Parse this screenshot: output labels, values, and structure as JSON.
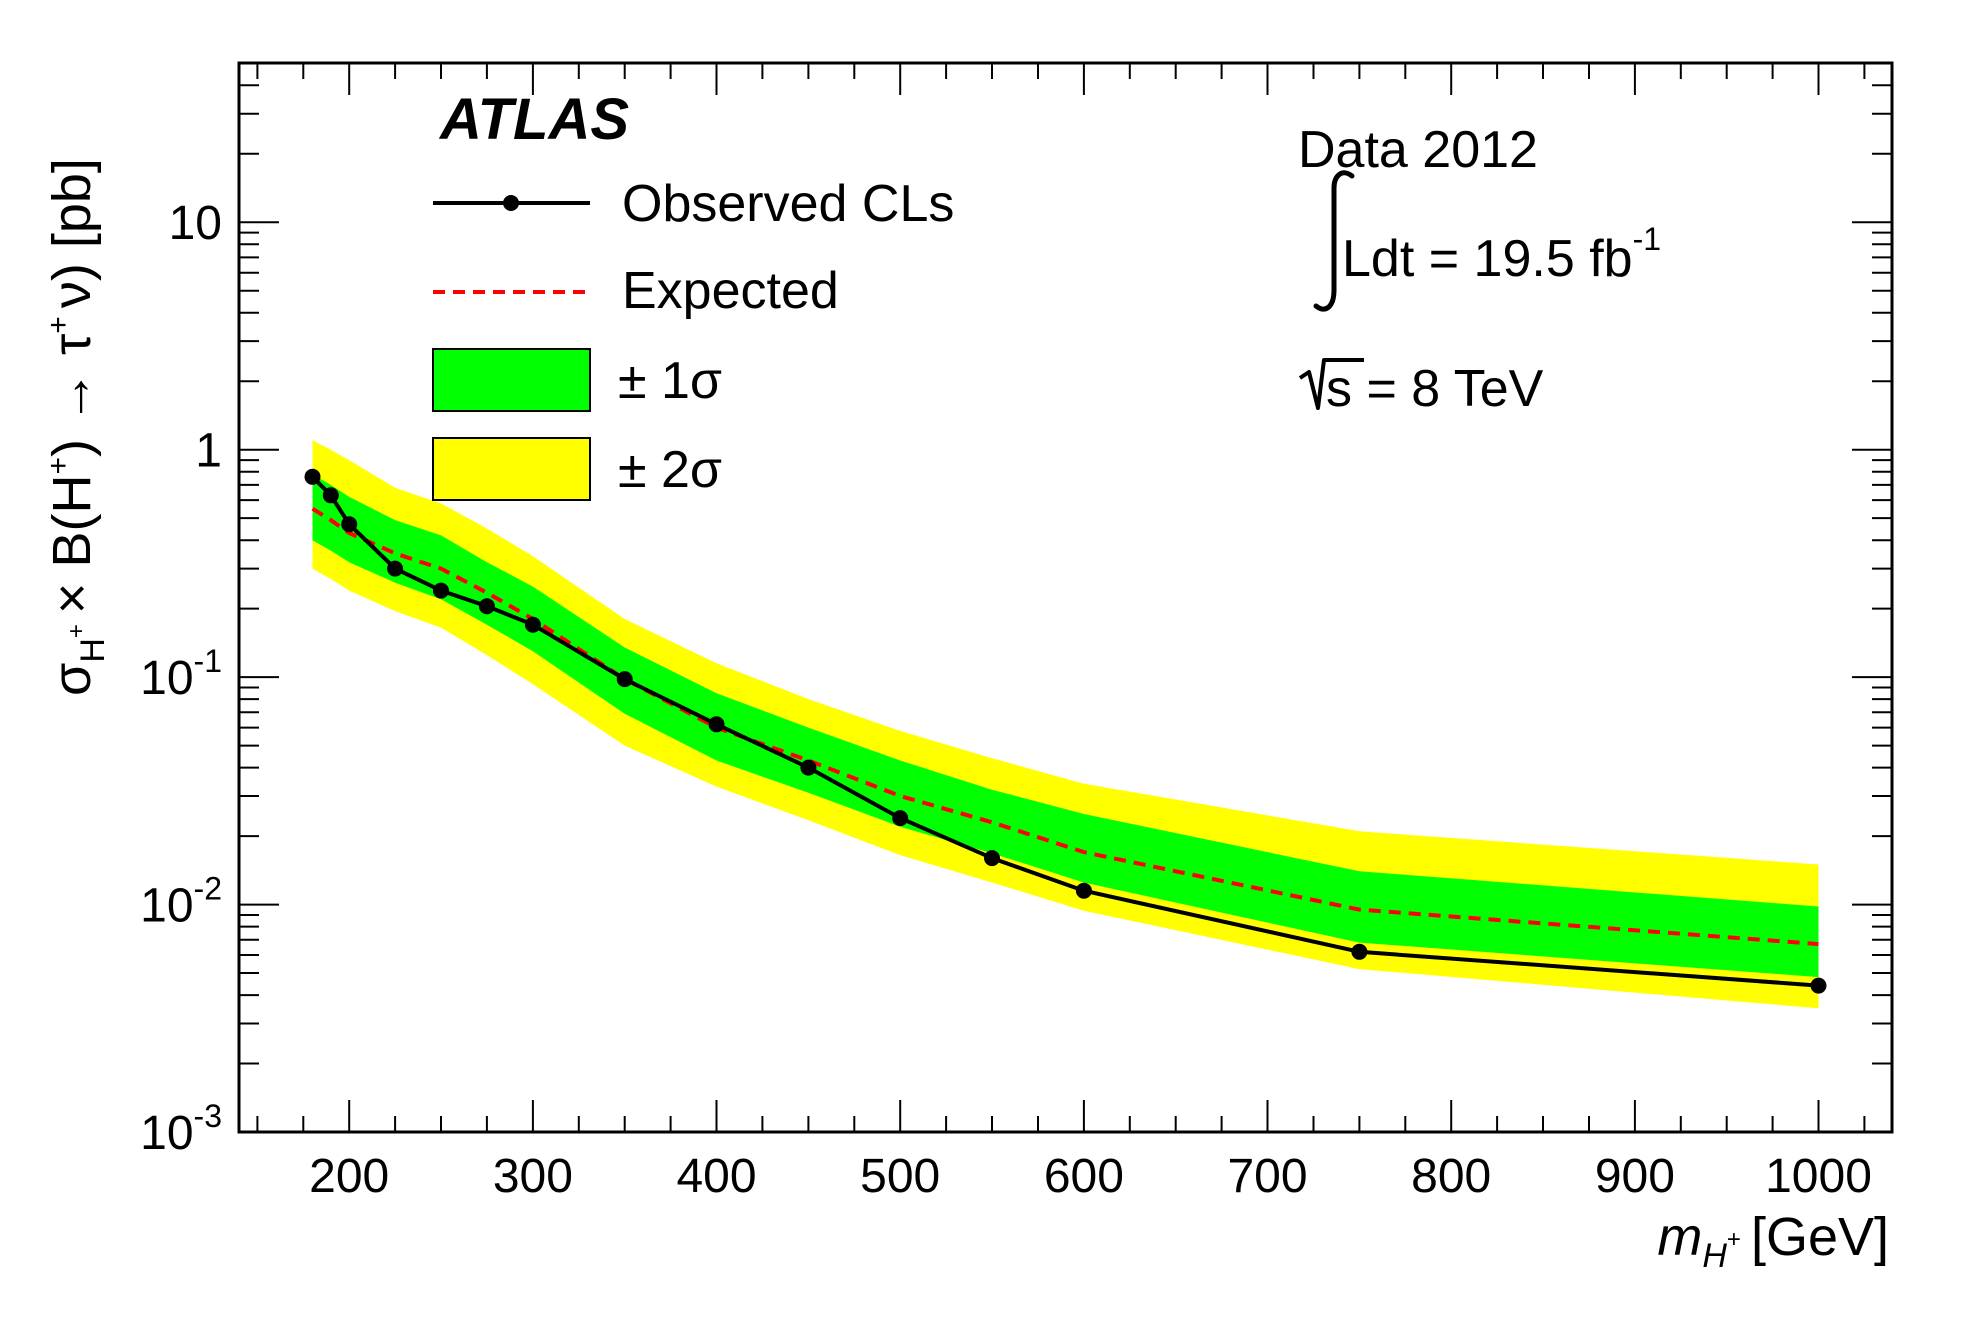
{
  "chart_data": {
    "type": "line",
    "title": "",
    "xlabel_main": "m",
    "xlabel_sub": "H",
    "xlabel_sup": "+",
    "xlabel_unit": "[GeV]",
    "ylabel": "σH+ × B(H+ → τ+ ν) [pb]",
    "ylabel_parts": {
      "sigma": "σ",
      "sigma_sub": "H",
      "sigma_sub_sup": "+",
      "times_b": "× B(H",
      "h_sup": "+",
      "arrow_tau": ") → τ",
      "tau_sup": "+",
      "nu_unit": "ν) [pb]"
    },
    "xlim": [
      140,
      1040
    ],
    "ylim_log10": [
      -3,
      1.7
    ],
    "yscale": "log",
    "x_ticks": [
      200,
      300,
      400,
      500,
      600,
      700,
      800,
      900,
      1000
    ],
    "x_tick_labels": [
      "200",
      "300",
      "400",
      "500",
      "600",
      "700",
      "800",
      "900",
      "1000"
    ],
    "y_ticks": [
      {
        "base": "10",
        "exp": "-3",
        "value": 0.001
      },
      {
        "base": "10",
        "exp": "-2",
        "value": 0.01
      },
      {
        "base": "10",
        "exp": "-1",
        "value": 0.1
      },
      {
        "base": "1",
        "exp": "",
        "value": 1
      },
      {
        "base": "10",
        "exp": "",
        "value": 10
      }
    ],
    "masses": [
      180,
      190,
      200,
      225,
      250,
      275,
      300,
      350,
      400,
      450,
      500,
      550,
      600,
      750,
      1000
    ],
    "series": [
      {
        "name": "Observed CLs",
        "color": "#000000",
        "style": "solid-with-markers",
        "x": [
          180,
          190,
          200,
          225,
          250,
          275,
          300,
          350,
          400,
          450,
          500,
          550,
          600,
          750,
          1000
        ],
        "values": [
          0.76,
          0.63,
          0.47,
          0.3,
          0.24,
          0.205,
          0.17,
          0.098,
          0.062,
          0.04,
          0.024,
          0.016,
          0.0115,
          0.0062,
          0.0044
        ]
      },
      {
        "name": "Expected",
        "color": "#ff0000",
        "style": "dashed",
        "x": [
          180,
          190,
          200,
          225,
          250,
          275,
          300,
          350,
          400,
          450,
          500,
          550,
          600,
          750,
          1000
        ],
        "values": [
          0.55,
          0.49,
          0.43,
          0.35,
          0.3,
          0.235,
          0.18,
          0.098,
          0.06,
          0.043,
          0.03,
          0.023,
          0.017,
          0.0095,
          0.0067
        ]
      }
    ],
    "bands": [
      {
        "name": "± 2σ",
        "color": "#ffff00",
        "x": [
          180,
          190,
          200,
          225,
          250,
          275,
          300,
          350,
          400,
          450,
          500,
          550,
          600,
          750,
          1000
        ],
        "lower": [
          0.3,
          0.27,
          0.24,
          0.195,
          0.165,
          0.125,
          0.093,
          0.05,
          0.033,
          0.0235,
          0.0165,
          0.0125,
          0.0094,
          0.0052,
          0.0035
        ],
        "upper": [
          1.1,
          1.0,
          0.9,
          0.68,
          0.58,
          0.45,
          0.34,
          0.18,
          0.115,
          0.08,
          0.058,
          0.044,
          0.034,
          0.021,
          0.015
        ]
      },
      {
        "name": "± 1σ",
        "color": "#00ff00",
        "x": [
          180,
          190,
          200,
          225,
          250,
          275,
          300,
          350,
          400,
          450,
          500,
          550,
          600,
          750,
          1000
        ],
        "lower": [
          0.4,
          0.36,
          0.32,
          0.26,
          0.22,
          0.17,
          0.13,
          0.069,
          0.043,
          0.031,
          0.022,
          0.0168,
          0.0125,
          0.0068,
          0.0048
        ],
        "upper": [
          0.78,
          0.7,
          0.62,
          0.49,
          0.42,
          0.32,
          0.25,
          0.135,
          0.085,
          0.06,
          0.043,
          0.032,
          0.025,
          0.014,
          0.0098
        ]
      }
    ],
    "legend": {
      "experiment": "ATLAS",
      "entries": [
        {
          "label": "Observed CLs",
          "kind": "line-marker",
          "color": "#000000"
        },
        {
          "label": "Expected",
          "kind": "dashed",
          "color": "#ff0000"
        },
        {
          "label": "± 1σ",
          "kind": "box",
          "color": "#00ff00"
        },
        {
          "label": "± 2σ",
          "kind": "box",
          "color": "#ffff00"
        }
      ]
    },
    "annotations": {
      "data": "Data 2012",
      "lumi_text": "Ldt = 19.5 fb",
      "lumi_exp": "-1",
      "sqrt_s": "s = 8 TeV"
    }
  }
}
